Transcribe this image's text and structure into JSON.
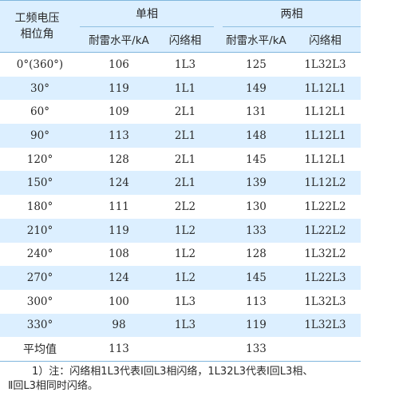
{
  "table": {
    "header": {
      "angle_line1": "工频电压",
      "angle_line2": "相位角",
      "single": "单相",
      "double": "两相",
      "sub": [
        "耐雷水平/kA",
        "闪络相",
        "耐雷水平/kA",
        "闪络相"
      ]
    },
    "rows": [
      [
        "0°(360°)",
        "106",
        "1L3",
        "125",
        "1L32L3"
      ],
      [
        "30°",
        "119",
        "1L1",
        "149",
        "1L12L1"
      ],
      [
        "60°",
        "109",
        "2L1",
        "131",
        "1L12L1"
      ],
      [
        "90°",
        "113",
        "2L1",
        "148",
        "1L12L1"
      ],
      [
        "120°",
        "128",
        "2L1",
        "145",
        "1L12L1"
      ],
      [
        "150°",
        "124",
        "2L1",
        "139",
        "1L12L2"
      ],
      [
        "180°",
        "111",
        "2L2",
        "130",
        "1L22L2"
      ],
      [
        "210°",
        "119",
        "1L2",
        "133",
        "1L22L2"
      ],
      [
        "240°",
        "108",
        "1L2",
        "128",
        "1L32L2"
      ],
      [
        "270°",
        "124",
        "1L2",
        "145",
        "1L22L3"
      ],
      [
        "300°",
        "100",
        "1L3",
        "113",
        "1L32L3"
      ],
      [
        "330°",
        "98",
        "1L3",
        "119",
        "1L32L3"
      ]
    ],
    "average": [
      "平均值",
      "113",
      "",
      "133",
      ""
    ]
  },
  "note": {
    "line1": "1）注：闪络相1L3代表Ⅰ回L3相闪络，1L32L3代表Ⅰ回L3相、",
    "line2": "Ⅱ回L3相同时闪络。"
  }
}
